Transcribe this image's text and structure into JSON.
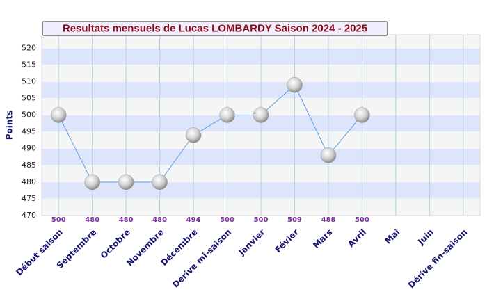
{
  "chart_data": {
    "type": "line",
    "title": "Resultats mensuels de Lucas LOMBARDY Saison 2024 - 2025",
    "y_label": "Points",
    "categories": [
      "Début saison",
      "Septembre",
      "Octobre",
      "Novembre",
      "Décembre",
      "Dérive mi-saison",
      "Janvier",
      "Févier",
      "Mars",
      "Avril",
      "Mai",
      "Juin",
      "Dérive fin-saison"
    ],
    "series": [
      {
        "color": "#5a9be0",
        "values": [
          500,
          480,
          480,
          480,
          494,
          500,
          500,
          509,
          488,
          500,
          null,
          null,
          null
        ]
      }
    ],
    "ylim": [
      470,
      524
    ],
    "yticks": [
      470,
      475,
      480,
      485,
      490,
      495,
      500,
      505,
      510,
      515,
      520
    ],
    "grid": true,
    "band_colors": [
      "#f5f5f5",
      "#dde5fb"
    ]
  }
}
